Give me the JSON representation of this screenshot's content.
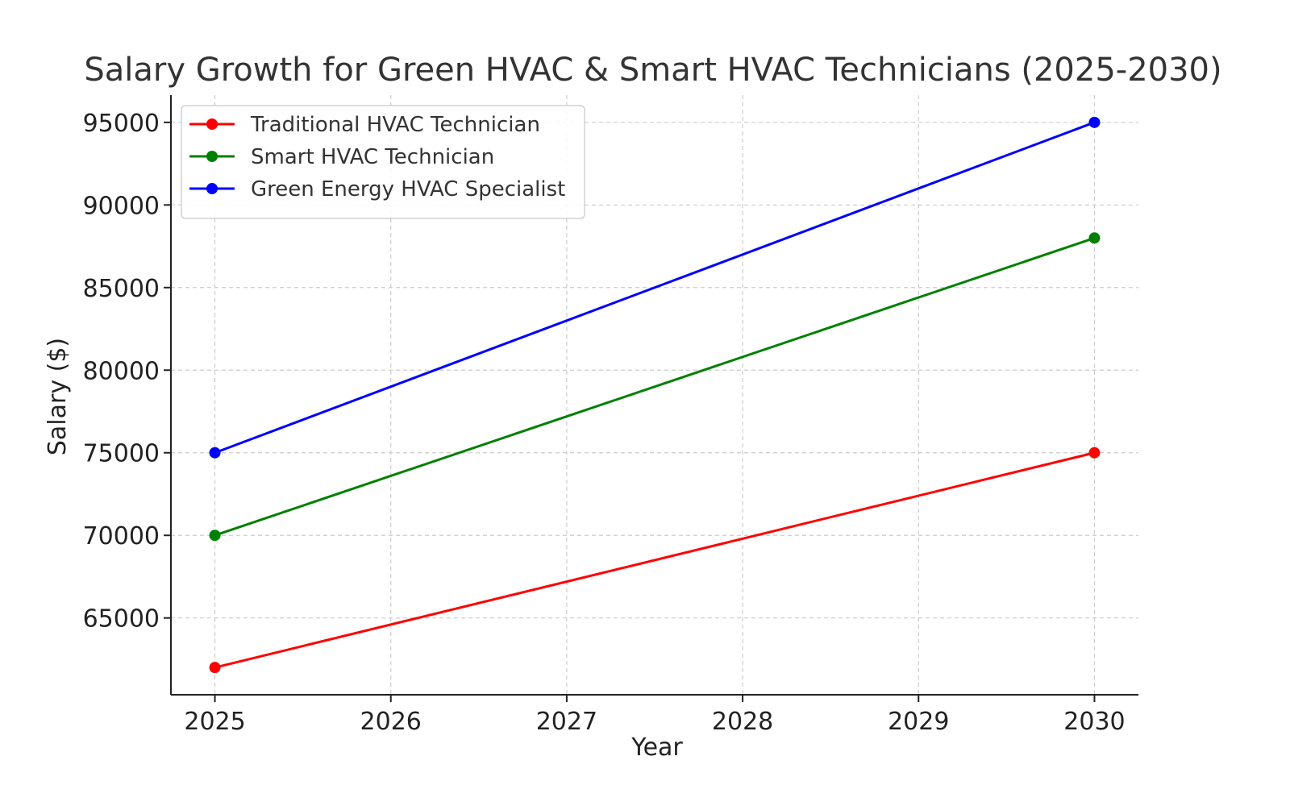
{
  "chart_data": {
    "type": "line",
    "title": "Salary Growth for Green HVAC & Smart HVAC Technicians (2025-2030)",
    "xlabel": "Year",
    "ylabel": "Salary ($)",
    "x": [
      2025,
      2030
    ],
    "xticks": [
      "2025",
      "2026",
      "2027",
      "2028",
      "2029",
      "2030"
    ],
    "xlim": [
      2024.75,
      2030.25
    ],
    "yticks": [
      "65000",
      "70000",
      "75000",
      "80000",
      "85000",
      "90000",
      "95000"
    ],
    "ylim": [
      60350,
      96650
    ],
    "grid": true,
    "legend_position": "upper-left",
    "series": [
      {
        "name": "Traditional HVAC Technician",
        "values": [
          62000,
          75000
        ],
        "color": "#ff0000"
      },
      {
        "name": "Smart HVAC Technician",
        "values": [
          70000,
          88000
        ],
        "color": "#008000"
      },
      {
        "name": "Green Energy HVAC Specialist",
        "values": [
          75000,
          95000
        ],
        "color": "#0000ff"
      }
    ]
  }
}
